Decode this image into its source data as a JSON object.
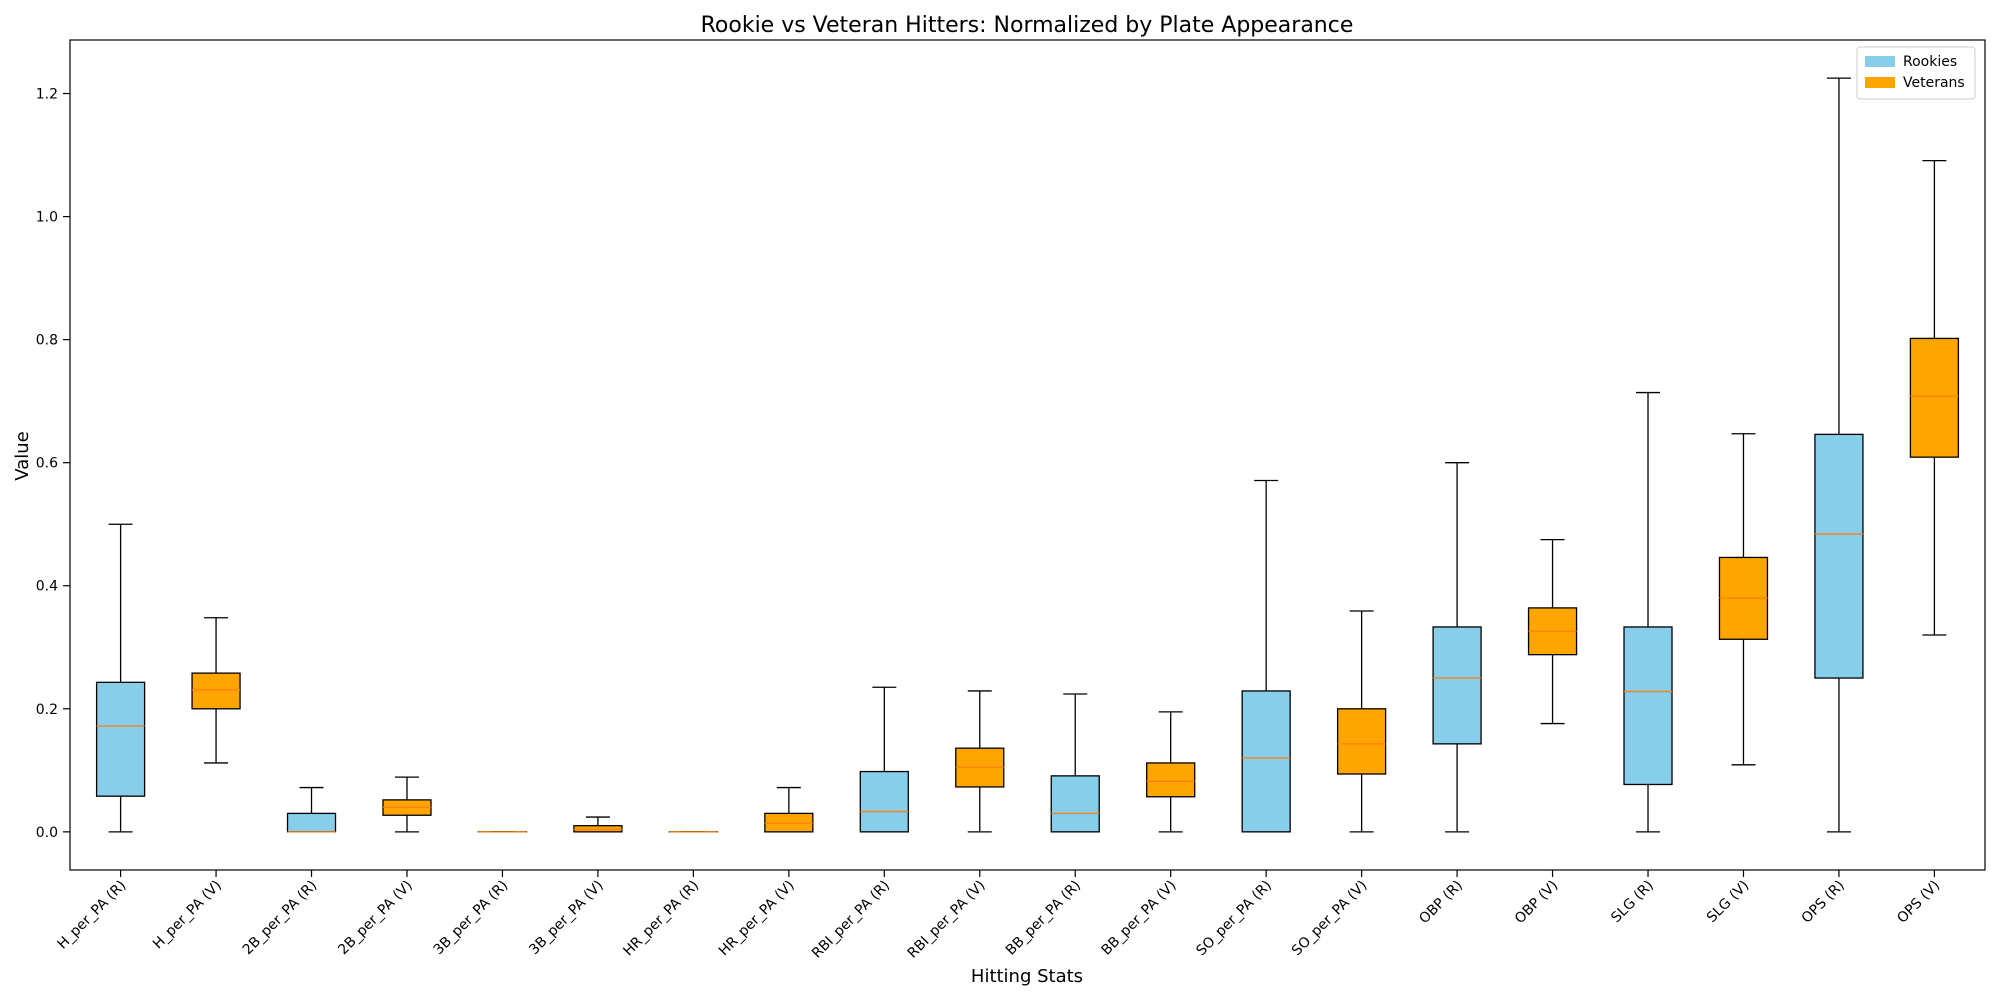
{
  "chart_data": {
    "type": "box",
    "title": "Rookie vs Veteran Hitters: Normalized by Plate Appearance",
    "xlabel": "Hitting Stats",
    "ylabel": "Value",
    "ylim": [
      -0.062,
      1.287
    ],
    "yticks": [
      0.0,
      0.2,
      0.4,
      0.6,
      0.8,
      1.0,
      1.2
    ],
    "ytick_labels": [
      "0.0",
      "0.2",
      "0.4",
      "0.6",
      "0.8",
      "1.0",
      "1.2"
    ],
    "grid": false,
    "legend_position": "top-right",
    "legend": [
      {
        "name": "Rookies",
        "color": "#87CEEB"
      },
      {
        "name": "Veterans",
        "color": "#FFA500"
      }
    ],
    "categories": [
      "H_per_PA (R)",
      "H_per_PA (V)",
      "2B_per_PA (R)",
      "2B_per_PA (V)",
      "3B_per_PA (R)",
      "3B_per_PA (V)",
      "HR_per_PA (R)",
      "HR_per_PA (V)",
      "RBI_per_PA (R)",
      "RBI_per_PA (V)",
      "BB_per_PA (R)",
      "BB_per_PA (V)",
      "SO_per_PA (R)",
      "SO_per_PA (V)",
      "OBP (R)",
      "OBP (V)",
      "SLG (R)",
      "SLG (V)",
      "OPS (R)",
      "OPS (V)"
    ],
    "boxes": [
      {
        "group": "Rookies",
        "whislo": 0.0,
        "q1": 0.058,
        "med": 0.172,
        "q3": 0.243,
        "whishi": 0.5
      },
      {
        "group": "Veterans",
        "whislo": 0.112,
        "q1": 0.2,
        "med": 0.231,
        "q3": 0.258,
        "whishi": 0.348
      },
      {
        "group": "Rookies",
        "whislo": 0.0,
        "q1": 0.0,
        "med": 0.0,
        "q3": 0.03,
        "whishi": 0.072
      },
      {
        "group": "Veterans",
        "whislo": 0.0,
        "q1": 0.027,
        "med": 0.04,
        "q3": 0.052,
        "whishi": 0.089
      },
      {
        "group": "Rookies",
        "whislo": 0.0,
        "q1": 0.0,
        "med": 0.0,
        "q3": 0.0,
        "whishi": 0.0
      },
      {
        "group": "Veterans",
        "whislo": 0.0,
        "q1": 0.0,
        "med": 0.004,
        "q3": 0.01,
        "whishi": 0.024
      },
      {
        "group": "Rookies",
        "whislo": 0.0,
        "q1": 0.0,
        "med": 0.0,
        "q3": 0.0,
        "whishi": 0.0
      },
      {
        "group": "Veterans",
        "whislo": 0.0,
        "q1": 0.0,
        "med": 0.014,
        "q3": 0.03,
        "whishi": 0.072
      },
      {
        "group": "Rookies",
        "whislo": 0.0,
        "q1": 0.0,
        "med": 0.033,
        "q3": 0.098,
        "whishi": 0.235
      },
      {
        "group": "Veterans",
        "whislo": 0.0,
        "q1": 0.073,
        "med": 0.105,
        "q3": 0.136,
        "whishi": 0.229
      },
      {
        "group": "Rookies",
        "whislo": 0.0,
        "q1": 0.0,
        "med": 0.03,
        "q3": 0.091,
        "whishi": 0.224
      },
      {
        "group": "Veterans",
        "whislo": 0.0,
        "q1": 0.057,
        "med": 0.082,
        "q3": 0.112,
        "whishi": 0.195
      },
      {
        "group": "Rookies",
        "whislo": 0.0,
        "q1": 0.0,
        "med": 0.12,
        "q3": 0.229,
        "whishi": 0.571
      },
      {
        "group": "Veterans",
        "whislo": 0.0,
        "q1": 0.094,
        "med": 0.143,
        "q3": 0.2,
        "whishi": 0.359
      },
      {
        "group": "Rookies",
        "whislo": 0.0,
        "q1": 0.143,
        "med": 0.25,
        "q3": 0.333,
        "whishi": 0.6
      },
      {
        "group": "Veterans",
        "whislo": 0.176,
        "q1": 0.288,
        "med": 0.326,
        "q3": 0.364,
        "whishi": 0.475
      },
      {
        "group": "Rookies",
        "whislo": 0.0,
        "q1": 0.077,
        "med": 0.228,
        "q3": 0.333,
        "whishi": 0.714
      },
      {
        "group": "Veterans",
        "whislo": 0.109,
        "q1": 0.313,
        "med": 0.38,
        "q3": 0.446,
        "whishi": 0.647
      },
      {
        "group": "Rookies",
        "whislo": 0.0,
        "q1": 0.25,
        "med": 0.484,
        "q3": 0.646,
        "whishi": 1.225
      },
      {
        "group": "Veterans",
        "whislo": 0.32,
        "q1": 0.609,
        "med": 0.708,
        "q3": 0.802,
        "whishi": 1.091
      }
    ],
    "median_color": "#FF7F0E"
  }
}
